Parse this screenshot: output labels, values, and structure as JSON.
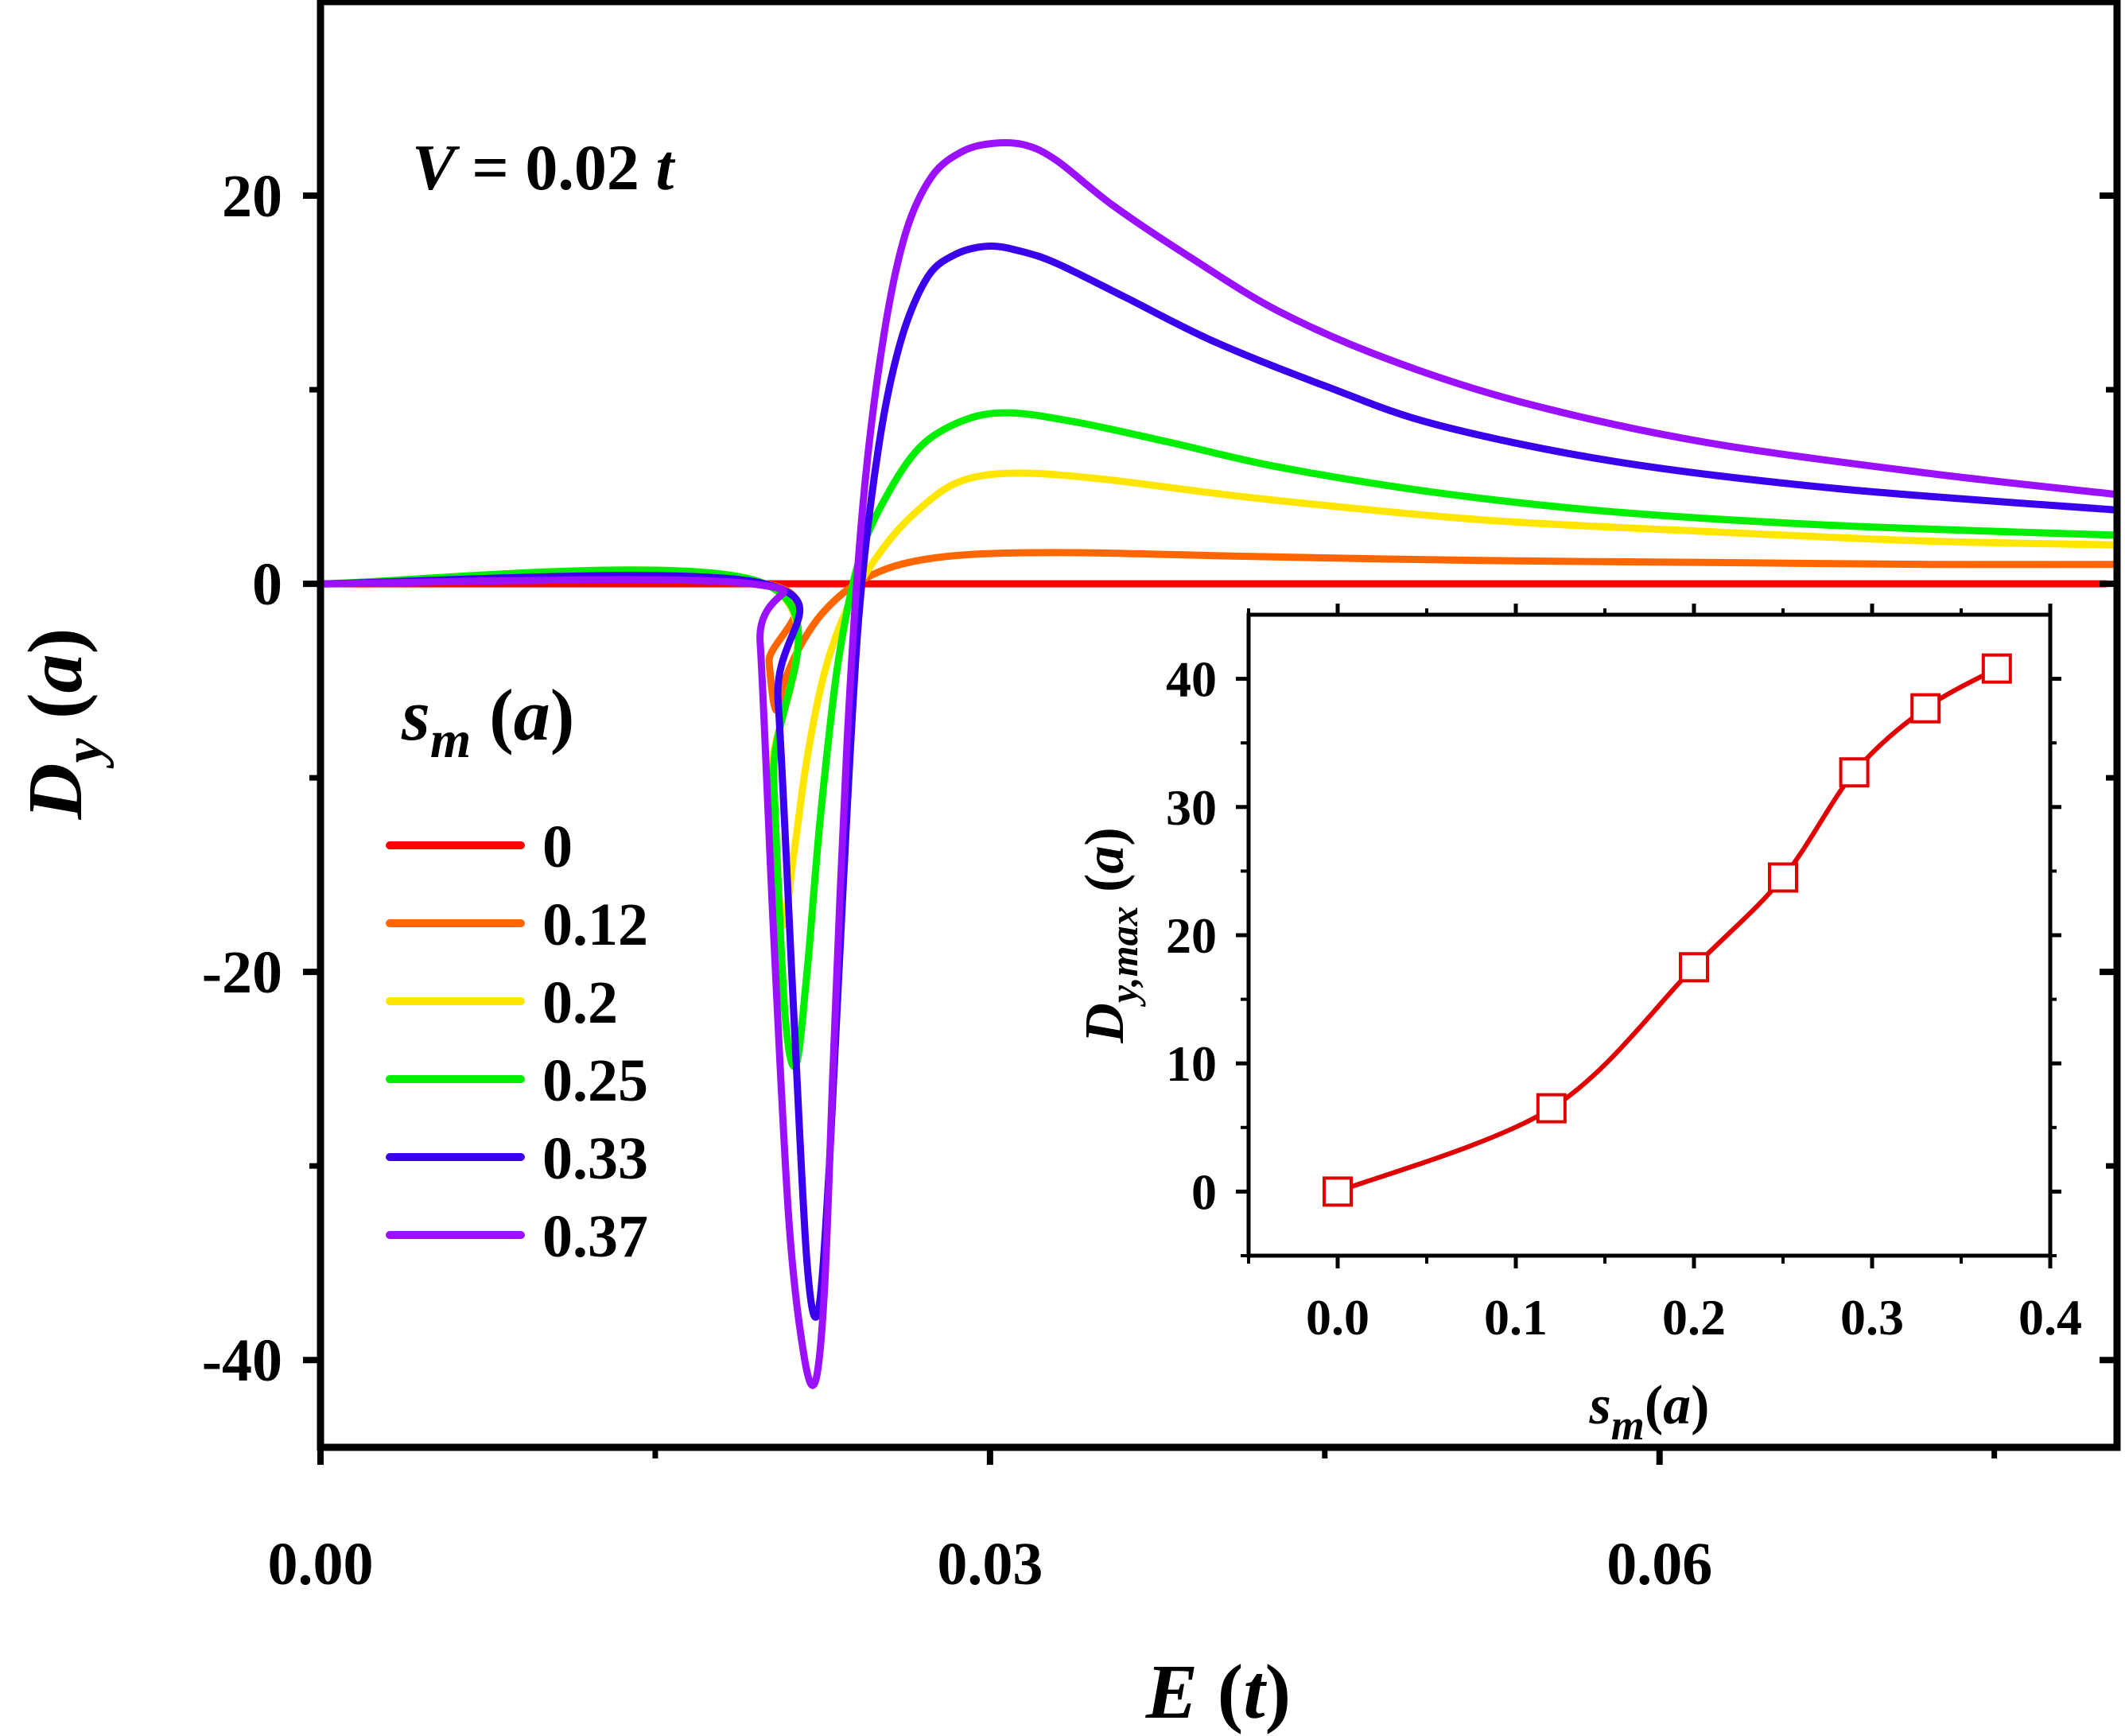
{
  "chart_data": [
    {
      "id": "main",
      "type": "line",
      "title": "",
      "annotation": {
        "italic": "V",
        "text": " = 0.02 ",
        "italic2": "t"
      },
      "xlabel": {
        "sym": "E",
        "unit": "t"
      },
      "ylabel": {
        "sym": "D",
        "sub": "y",
        "unit": "a"
      },
      "xlim": [
        0.0,
        0.0805
      ],
      "ylim": [
        -44.5,
        30
      ],
      "x_ticks": [
        0.0,
        0.03,
        0.06
      ],
      "x_tick_labels": [
        "0.00",
        "0.03",
        "0.06"
      ],
      "x_minor_ticks": [
        0.015,
        0.045,
        0.075
      ],
      "y_ticks": [
        -40,
        -20,
        0,
        20
      ],
      "y_tick_labels": [
        "-40",
        "-20",
        "0",
        "20"
      ],
      "y_minor_ticks": [
        -30,
        -10,
        10
      ],
      "legend": {
        "title": {
          "sym": "s",
          "sub": "m",
          "unit": "a"
        },
        "position": "left"
      },
      "series": [
        {
          "name": "0",
          "color": "#ff0000",
          "x": [
            0.0,
            0.0195,
            0.04,
            0.08
          ],
          "y": [
            0,
            0,
            0,
            0
          ]
        },
        {
          "name": "0.12",
          "color": "#ff6600",
          "x": [
            0.0,
            0.0199,
            0.0201,
            0.0204,
            0.0208,
            0.0215,
            0.0225,
            0.024,
            0.026,
            0.029,
            0.034,
            0.042,
            0.052,
            0.062,
            0.072,
            0.0805
          ],
          "y": [
            0,
            0,
            -4.0,
            -6.5,
            -5.0,
            -3.2,
            -1.5,
            0.0,
            1.0,
            1.5,
            1.6,
            1.4,
            1.2,
            1.1,
            1.0,
            1.0
          ]
        },
        {
          "name": "0.2",
          "color": "#ffe600",
          "x": [
            0.0,
            0.0199,
            0.0202,
            0.0207,
            0.0212,
            0.0218,
            0.0226,
            0.0237,
            0.025,
            0.0265,
            0.0285,
            0.031,
            0.035,
            0.042,
            0.052,
            0.062,
            0.072,
            0.0805
          ],
          "y": [
            0,
            0,
            -10.0,
            -17.5,
            -14.0,
            -9.0,
            -4.5,
            -1.0,
            1.5,
            3.5,
            5.2,
            5.7,
            5.4,
            4.4,
            3.3,
            2.7,
            2.2,
            2.0
          ]
        },
        {
          "name": "0.25",
          "color": "#00ee00",
          "x": [
            0.0,
            0.0199,
            0.0203,
            0.0208,
            0.0213,
            0.0218,
            0.0224,
            0.0232,
            0.0242,
            0.0255,
            0.027,
            0.029,
            0.031,
            0.034,
            0.038,
            0.043,
            0.05,
            0.058,
            0.068,
            0.0805
          ],
          "y": [
            0,
            0,
            -10.0,
            -22.0,
            -24.8,
            -20.0,
            -12.0,
            -4.0,
            1.5,
            4.8,
            7.2,
            8.5,
            8.8,
            8.3,
            7.3,
            6.0,
            4.7,
            3.7,
            3.0,
            2.5
          ]
        },
        {
          "name": "0.33",
          "color": "#3a00ee",
          "x": [
            0.0,
            0.0199,
            0.0205,
            0.0212,
            0.0218,
            0.0223,
            0.0228,
            0.0234,
            0.0241,
            0.025,
            0.026,
            0.0272,
            0.0285,
            0.03,
            0.0315,
            0.033,
            0.036,
            0.04,
            0.045,
            0.05,
            0.058,
            0.068,
            0.0805
          ],
          "y": [
            0,
            0,
            -6.0,
            -22.0,
            -35.0,
            -37.5,
            -30.0,
            -16.0,
            -2.0,
            7.0,
            12.5,
            15.8,
            17.0,
            17.4,
            17.1,
            16.5,
            14.8,
            12.5,
            10.2,
            8.2,
            6.3,
            4.9,
            3.8
          ]
        },
        {
          "name": "0.37",
          "color": "#9a10ff",
          "x": [
            0.0,
            0.0193,
            0.0197,
            0.0203,
            0.021,
            0.0217,
            0.0222,
            0.0226,
            0.023,
            0.0236,
            0.0243,
            0.0252,
            0.0262,
            0.0274,
            0.0288,
            0.0302,
            0.0316,
            0.033,
            0.0355,
            0.039,
            0.043,
            0.048,
            0.054,
            0.062,
            0.072,
            0.0805
          ],
          "y": [
            0,
            0,
            -3.0,
            -18.0,
            -33.0,
            -40.0,
            -41.0,
            -36.0,
            -24.0,
            -8.0,
            4.0,
            12.5,
            18.0,
            21.0,
            22.3,
            22.7,
            22.6,
            21.8,
            19.5,
            16.8,
            14.0,
            11.5,
            9.3,
            7.3,
            5.7,
            4.6
          ]
        }
      ]
    },
    {
      "id": "inset",
      "type": "line",
      "marker": "square-open",
      "color": "#e00000",
      "xlabel": {
        "sym": "s",
        "sub": "m",
        "unit": "a"
      },
      "ylabel": {
        "sym": "D",
        "sub": "y,max",
        "unit": "a"
      },
      "xlim": [
        -0.05,
        0.4
      ],
      "ylim": [
        -5,
        45
      ],
      "x_ticks": [
        0.0,
        0.1,
        0.2,
        0.3,
        0.4
      ],
      "x_tick_labels": [
        "0.0",
        "0.1",
        "0.2",
        "0.3",
        "0.4"
      ],
      "x_minor_ticks": [
        -0.05,
        0.05,
        0.15,
        0.25,
        0.35
      ],
      "y_ticks": [
        0,
        10,
        20,
        30,
        40
      ],
      "y_tick_labels": [
        "0",
        "10",
        "20",
        "30",
        "40"
      ],
      "y_minor_ticks": [
        -5,
        5,
        15,
        25,
        35
      ],
      "x": [
        0.0,
        0.12,
        0.2,
        0.25,
        0.29,
        0.33,
        0.37
      ],
      "y": [
        0.0,
        6.5,
        17.5,
        24.5,
        32.7,
        37.7,
        40.8
      ]
    }
  ]
}
